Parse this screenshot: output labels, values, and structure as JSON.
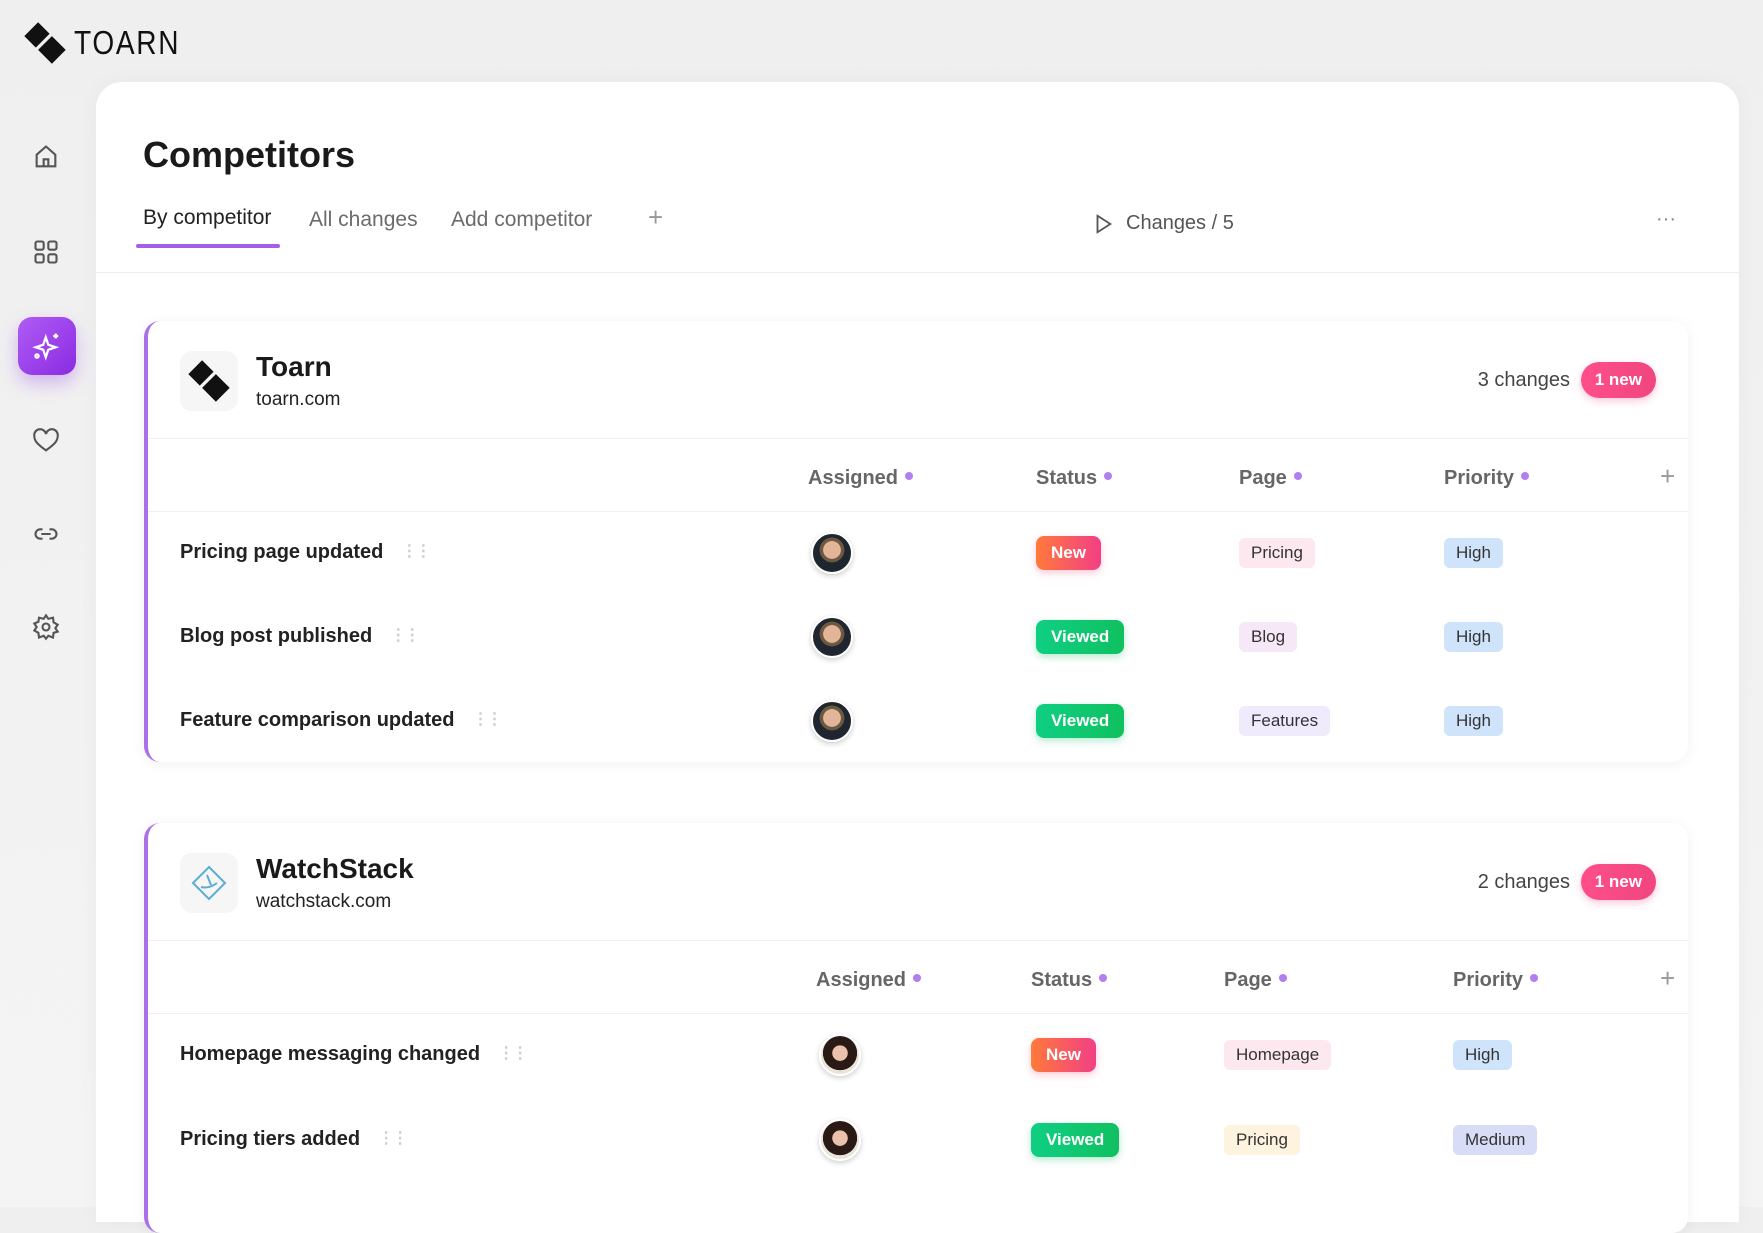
{
  "brand": {
    "name": "TOARN"
  },
  "sidebar": {
    "items": [
      {
        "icon": "home-icon"
      },
      {
        "icon": "grid-icon"
      },
      {
        "icon": "sparkle-icon",
        "active": true
      },
      {
        "icon": "heart-icon"
      },
      {
        "icon": "link-icon"
      },
      {
        "icon": "gear-icon"
      }
    ]
  },
  "page": {
    "title": "Competitors"
  },
  "tabs": [
    {
      "label": "By competitor",
      "active": true
    },
    {
      "label": "All changes"
    },
    {
      "label": "Add competitor"
    }
  ],
  "toolbar": {
    "add": "+",
    "changes_label": "Changes / 5",
    "more": "···"
  },
  "colors": {
    "accent": "#a65ee6",
    "new": "#f23f86",
    "viewed": "#10c060"
  },
  "competitors": [
    {
      "name": "Toarn",
      "domain": "toarn.com",
      "changes": "3 changes",
      "new_badge": "1 new",
      "columns": [
        "Assigned",
        "Status",
        "Page",
        "Priority"
      ],
      "rows": [
        {
          "title": "Pricing page updated",
          "avatar": "male",
          "status": "New",
          "page": "Pricing",
          "priority": "High"
        },
        {
          "title": "Blog post published",
          "avatar": "male",
          "status": "Viewed",
          "page": "Blog",
          "priority": "High"
        },
        {
          "title": "Feature comparison updated",
          "avatar": "male",
          "status": "Viewed",
          "page": "Features",
          "priority": "High"
        }
      ]
    },
    {
      "name": "WatchStack",
      "domain": "watchstack.com",
      "changes": "2 changes",
      "new_badge": "1 new",
      "columns": [
        "Assigned",
        "Status",
        "Page",
        "Priority"
      ],
      "rows": [
        {
          "title": "Homepage messaging changed",
          "avatar": "female",
          "status": "New",
          "page": "Homepage",
          "priority": "High"
        },
        {
          "title": "Pricing tiers added",
          "avatar": "female",
          "status": "Viewed",
          "page": "Pricing",
          "priority": "Medium"
        }
      ]
    }
  ]
}
